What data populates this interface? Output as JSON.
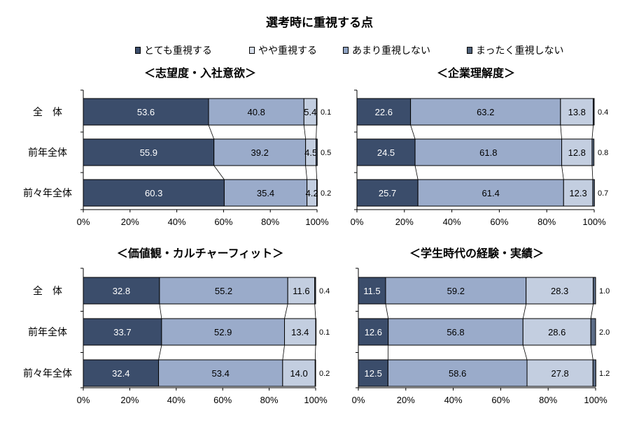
{
  "title": "選考時に重視する点",
  "legend": [
    {
      "label": "とても重視する",
      "color": "#3b4d6b"
    },
    {
      "label": "やや重視する",
      "color": "#d8e0ec"
    },
    {
      "label": "あまり重視しない",
      "color": "#8fa3c3"
    },
    {
      "label": "まったく重視しない",
      "color": "#4f6178"
    }
  ],
  "series_colors": [
    "#3b4d6b",
    "#9aabca",
    "#c3cee0",
    "#5b6c86"
  ],
  "chart_data": [
    {
      "type": "bar",
      "orientation": "horizontal-stacked",
      "title": "＜志望度・入社意欲＞",
      "categories": [
        "全　体",
        "前年全体",
        "前々年全体"
      ],
      "series": [
        {
          "name": "とても重視する",
          "values": [
            53.6,
            55.9,
            60.3
          ]
        },
        {
          "name": "やや重視する",
          "values": [
            40.8,
            39.2,
            35.4
          ]
        },
        {
          "name": "あまり重視しない",
          "values": [
            5.4,
            4.5,
            4.2
          ]
        },
        {
          "name": "まったく重視しない",
          "values": [
            0.1,
            0.5,
            0.2
          ]
        }
      ],
      "xticks": [
        "0%",
        "20%",
        "40%",
        "60%",
        "80%",
        "100%"
      ],
      "xlim": [
        0,
        100
      ]
    },
    {
      "type": "bar",
      "orientation": "horizontal-stacked",
      "title": "＜企業理解度＞",
      "categories": [
        "全　体",
        "前年全体",
        "前々年全体"
      ],
      "series": [
        {
          "name": "とても重視する",
          "values": [
            22.6,
            24.5,
            25.7
          ]
        },
        {
          "name": "やや重視する",
          "values": [
            63.2,
            61.8,
            61.4
          ]
        },
        {
          "name": "あまり重視しない",
          "values": [
            13.8,
            12.8,
            12.3
          ]
        },
        {
          "name": "まったく重視しない",
          "values": [
            0.4,
            0.8,
            0.7
          ]
        }
      ],
      "xticks": [
        "0%",
        "20%",
        "40%",
        "60%",
        "80%",
        "100%"
      ],
      "xlim": [
        0,
        100
      ]
    },
    {
      "type": "bar",
      "orientation": "horizontal-stacked",
      "title": "＜価値観・カルチャーフィット＞",
      "categories": [
        "全　体",
        "前年全体",
        "前々年全体"
      ],
      "series": [
        {
          "name": "とても重視する",
          "values": [
            32.8,
            33.7,
            32.4
          ]
        },
        {
          "name": "やや重視する",
          "values": [
            55.2,
            52.9,
            53.4
          ]
        },
        {
          "name": "あまり重視しない",
          "values": [
            11.6,
            13.4,
            14.0
          ]
        },
        {
          "name": "まったく重視しない",
          "values": [
            0.4,
            0.1,
            0.2
          ]
        }
      ],
      "xticks": [
        "0%",
        "20%",
        "40%",
        "60%",
        "80%",
        "100%"
      ],
      "xlim": [
        0,
        100
      ]
    },
    {
      "type": "bar",
      "orientation": "horizontal-stacked",
      "title": "＜学生時代の経験・実績＞",
      "categories": [
        "全　体",
        "前年全体",
        "前々年全体"
      ],
      "series": [
        {
          "name": "とても重視する",
          "values": [
            11.5,
            12.6,
            12.5
          ]
        },
        {
          "name": "やや重視する",
          "values": [
            59.2,
            56.8,
            58.6
          ]
        },
        {
          "name": "あまり重視しない",
          "values": [
            28.3,
            28.6,
            27.8
          ]
        },
        {
          "name": "まったく重視しない",
          "values": [
            1.0,
            2.0,
            1.2
          ]
        }
      ],
      "xticks": [
        "0%",
        "20%",
        "40%",
        "60%",
        "80%",
        "100%"
      ],
      "xlim": [
        0,
        100
      ]
    }
  ]
}
